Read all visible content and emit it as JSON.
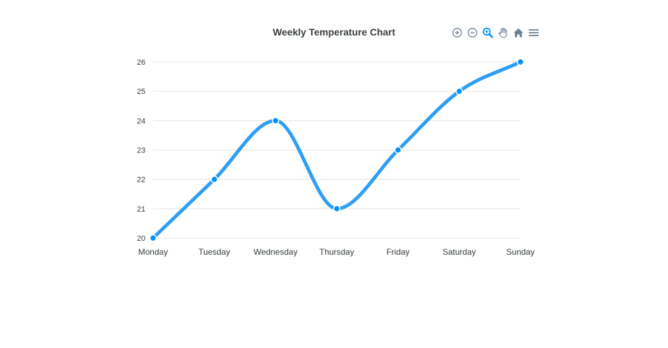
{
  "toolbar": {
    "icons": [
      "zoom-in-icon",
      "zoom-out-icon",
      "selection-zoom-icon",
      "pan-icon",
      "home-icon",
      "menu-icon"
    ],
    "active_color": "#008ffb",
    "icon_color": "#6e8192"
  },
  "chart_data": {
    "type": "line",
    "title": "Weekly Temperature Chart",
    "categories": [
      "Monday",
      "Tuesday",
      "Wednesday",
      "Thursday",
      "Friday",
      "Saturday",
      "Sunday"
    ],
    "series": [
      {
        "values": [
          20,
          22,
          24,
          21,
          23,
          25,
          26
        ],
        "color": "#2e9ef4"
      }
    ],
    "ylim": [
      20,
      26
    ],
    "yticks": [
      "20",
      "21",
      "22",
      "23",
      "24",
      "25",
      "26"
    ],
    "curve": "smooth",
    "grid": true,
    "legend": "none"
  }
}
